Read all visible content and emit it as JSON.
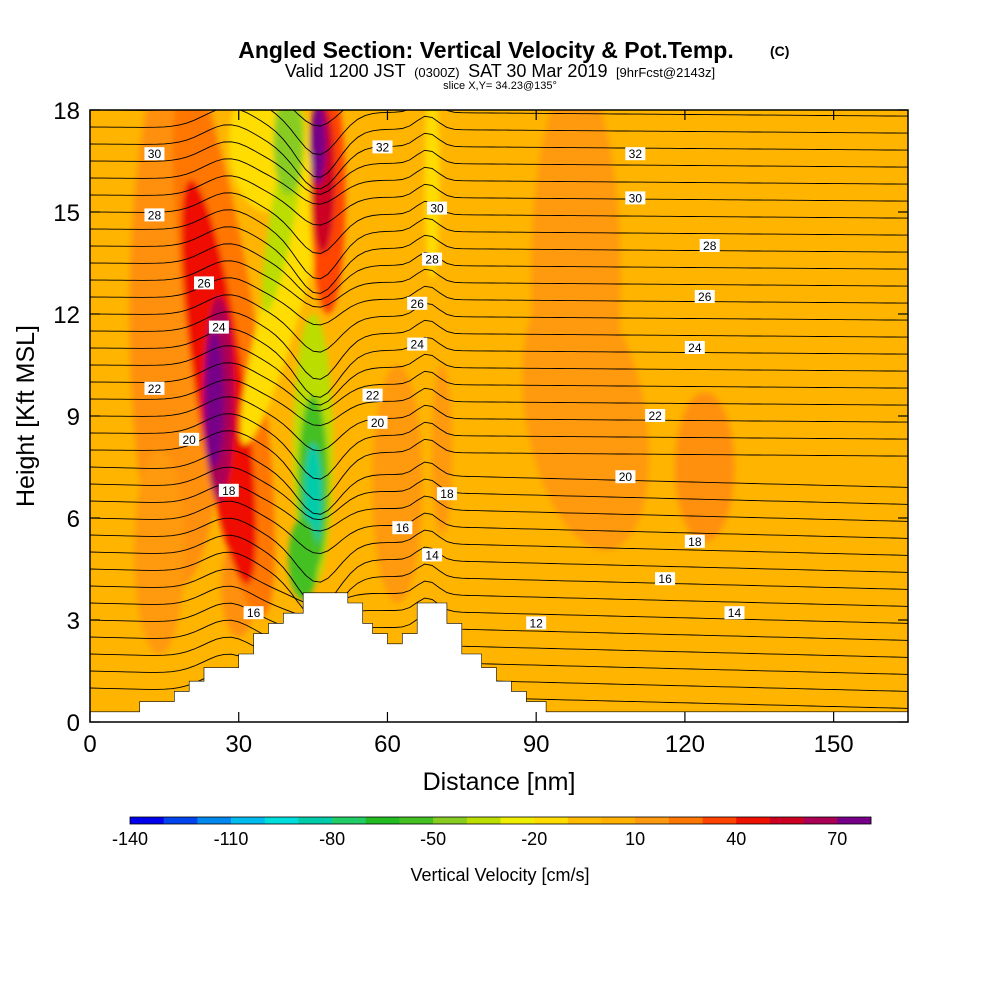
{
  "header": {
    "title": "Angled Section: Vertical Velocity & Pot.Temp.",
    "title_unit": "(C)",
    "valid_a": "Valid 1200 JST",
    "valid_b": "(0300Z)",
    "valid_c": "SAT 30 Mar 2019",
    "valid_d": "[9hrFcst@2143z]",
    "slice": "slice X,Y= 34.23@135°"
  },
  "chart_data": {
    "type": "heatmap",
    "xlabel": "Distance [nm]",
    "ylabel": "Height [Kft MSL]",
    "xlim": [
      0,
      165
    ],
    "ylim": [
      0,
      18
    ],
    "xticks": [
      "0",
      "30",
      "60",
      "90",
      "120",
      "150"
    ],
    "yticks": [
      "0",
      "3",
      "6",
      "9",
      "12",
      "15",
      "18"
    ],
    "colorbar": {
      "label": "Vertical Velocity [cm/s]",
      "tick_labels": [
        "-140",
        "-110",
        "-80",
        "-50",
        "-20",
        "10",
        "40",
        "70"
      ],
      "levels": [
        -140,
        -130,
        -120,
        -110,
        -100,
        -90,
        -80,
        -70,
        -60,
        -50,
        -40,
        -30,
        -20,
        -10,
        0,
        10,
        20,
        30,
        40,
        50,
        60,
        70,
        80
      ],
      "colors": [
        "#0000ee",
        "#0044ee",
        "#0088ee",
        "#00bbee",
        "#00dddd",
        "#00ccaa",
        "#22cc66",
        "#22bb22",
        "#44c022",
        "#88cc22",
        "#bbdd00",
        "#eeee00",
        "#ffdd00",
        "#ffbb00",
        "#ffb000",
        "#ff9910",
        "#ff7700",
        "#ff4400",
        "#ee1100",
        "#cc0022",
        "#aa0055",
        "#770088"
      ]
    },
    "terrain_kft": [
      [
        0,
        0.3
      ],
      [
        10,
        0.3
      ],
      [
        10,
        0.6
      ],
      [
        17,
        0.6
      ],
      [
        17,
        0.9
      ],
      [
        20,
        0.9
      ],
      [
        20,
        1.2
      ],
      [
        23,
        1.2
      ],
      [
        23,
        1.6
      ],
      [
        30,
        1.6
      ],
      [
        30,
        2.0
      ],
      [
        33,
        2.0
      ],
      [
        33,
        2.6
      ],
      [
        36,
        2.6
      ],
      [
        36,
        2.9
      ],
      [
        39,
        2.9
      ],
      [
        39,
        3.2
      ],
      [
        43,
        3.2
      ],
      [
        43,
        3.8
      ],
      [
        52,
        3.8
      ],
      [
        52,
        3.5
      ],
      [
        55,
        3.5
      ],
      [
        55,
        2.9
      ],
      [
        57,
        2.9
      ],
      [
        57,
        2.6
      ],
      [
        60,
        2.6
      ],
      [
        60,
        2.3
      ],
      [
        63,
        2.3
      ],
      [
        63,
        2.6
      ],
      [
        66,
        2.6
      ],
      [
        66,
        3.5
      ],
      [
        72,
        3.5
      ],
      [
        72,
        2.9
      ],
      [
        75,
        2.9
      ],
      [
        75,
        2.0
      ],
      [
        79,
        2.0
      ],
      [
        79,
        1.6
      ],
      [
        82,
        1.6
      ],
      [
        82,
        1.2
      ],
      [
        85,
        1.2
      ],
      [
        85,
        0.9
      ],
      [
        88,
        0.9
      ],
      [
        88,
        0.6
      ],
      [
        92,
        0.6
      ],
      [
        92,
        0.3
      ],
      [
        165,
        0.3
      ]
    ],
    "isentrope_labels": [
      {
        "text": "30",
        "x": 13,
        "y": 16.7
      },
      {
        "text": "32",
        "x": 59,
        "y": 16.9
      },
      {
        "text": "32",
        "x": 110,
        "y": 16.7
      },
      {
        "text": "28",
        "x": 13,
        "y": 14.9
      },
      {
        "text": "30",
        "x": 70,
        "y": 15.1
      },
      {
        "text": "30",
        "x": 110,
        "y": 15.4
      },
      {
        "text": "26",
        "x": 23,
        "y": 12.9
      },
      {
        "text": "28",
        "x": 69,
        "y": 13.6
      },
      {
        "text": "28",
        "x": 125,
        "y": 14.0
      },
      {
        "text": "24",
        "x": 26,
        "y": 11.6
      },
      {
        "text": "26",
        "x": 66,
        "y": 12.3
      },
      {
        "text": "26",
        "x": 124,
        "y": 12.5
      },
      {
        "text": "22",
        "x": 13,
        "y": 9.8
      },
      {
        "text": "24",
        "x": 66,
        "y": 11.1
      },
      {
        "text": "24",
        "x": 122,
        "y": 11.0
      },
      {
        "text": "20",
        "x": 20,
        "y": 8.3
      },
      {
        "text": "22",
        "x": 57,
        "y": 9.6
      },
      {
        "text": "22",
        "x": 114,
        "y": 9.0
      },
      {
        "text": "18",
        "x": 28,
        "y": 6.8
      },
      {
        "text": "20",
        "x": 58,
        "y": 8.8
      },
      {
        "text": "20",
        "x": 108,
        "y": 7.2
      },
      {
        "text": "18",
        "x": 72,
        "y": 6.7
      },
      {
        "text": "18",
        "x": 122,
        "y": 5.3
      },
      {
        "text": "16",
        "x": 63,
        "y": 5.7
      },
      {
        "text": "16",
        "x": 116,
        "y": 4.2
      },
      {
        "text": "14",
        "x": 69,
        "y": 4.9
      },
      {
        "text": "14",
        "x": 130,
        "y": 3.2
      },
      {
        "text": "12",
        "x": 90,
        "y": 2.9
      },
      {
        "text": "16",
        "x": 33,
        "y": 3.2
      }
    ]
  }
}
